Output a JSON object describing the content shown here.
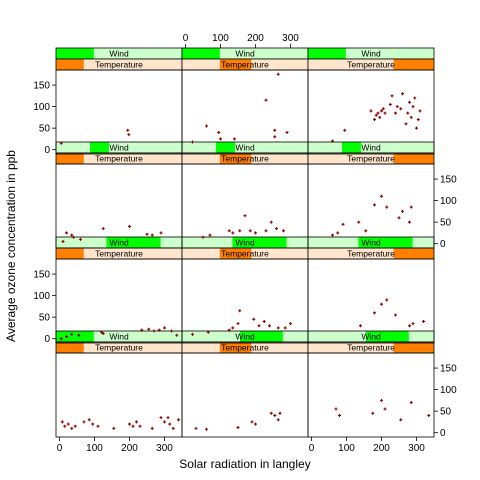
{
  "chart_data": {
    "type": "scatter",
    "xlabel": "Solar radiation in langley",
    "ylabel": "Average ozone concentration in ppb",
    "xlim": [
      -10,
      350
    ],
    "ylim": [
      -10,
      185
    ],
    "x_ticks": [
      0,
      100,
      200,
      300
    ],
    "y_ticks": [
      0,
      50,
      100,
      150
    ],
    "strip_variables": [
      "Wind",
      "Temperature"
    ],
    "layout": {
      "columns": 3,
      "rows": 4,
      "order": "bottom-to-top"
    },
    "colors": {
      "point": "#8b0000",
      "wind_strip_bg": "#ccffcc",
      "wind_strip_fill": "#00ff00",
      "temperature_strip_bg": "#ffe5cc",
      "temperature_strip_fill": "#ff7f00"
    },
    "panels": [
      {
        "row": 0,
        "col": 0,
        "wind": [
          0,
          0.3
        ],
        "temperature": [
          0,
          0.22
        ],
        "points": [
          [
            8,
            25
          ],
          [
            15,
            15
          ],
          [
            25,
            20
          ],
          [
            35,
            10
          ],
          [
            45,
            15
          ],
          [
            70,
            25
          ],
          [
            85,
            30
          ],
          [
            95,
            20
          ],
          [
            110,
            15
          ],
          [
            155,
            10
          ],
          [
            200,
            20
          ],
          [
            210,
            15
          ],
          [
            220,
            25
          ],
          [
            230,
            15
          ],
          [
            265,
            10
          ],
          [
            290,
            35
          ],
          [
            300,
            25
          ],
          [
            310,
            35
          ],
          [
            315,
            20
          ],
          [
            325,
            10
          ],
          [
            340,
            30
          ]
        ]
      },
      {
        "row": 0,
        "col": 1,
        "wind": [
          0.46,
          0.8
        ],
        "temperature": [
          0.3,
          0.55
        ],
        "points": [
          [
            30,
            10
          ],
          [
            60,
            8
          ],
          [
            150,
            12
          ],
          [
            190,
            25
          ],
          [
            200,
            20
          ],
          [
            245,
            45
          ],
          [
            255,
            40
          ],
          [
            265,
            30
          ],
          [
            270,
            45
          ]
        ]
      },
      {
        "row": 0,
        "col": 2,
        "wind": [
          0.46,
          0.8
        ],
        "temperature": [
          0.68,
          1.0
        ],
        "points": [
          [
            70,
            55
          ],
          [
            80,
            40
          ],
          [
            175,
            45
          ],
          [
            200,
            75
          ],
          [
            210,
            55
          ],
          [
            255,
            30
          ],
          [
            285,
            70
          ],
          [
            335,
            40
          ]
        ]
      },
      {
        "row": 1,
        "col": 0,
        "wind": [
          0.4,
          0.83
        ],
        "temperature": [
          0,
          0.22
        ],
        "points": [
          [
            5,
            0
          ],
          [
            20,
            5
          ],
          [
            35,
            10
          ],
          [
            55,
            8
          ],
          [
            120,
            15
          ],
          [
            125,
            12
          ],
          [
            235,
            20
          ],
          [
            255,
            22
          ],
          [
            270,
            18
          ],
          [
            285,
            20
          ],
          [
            300,
            25
          ],
          [
            320,
            18
          ],
          [
            335,
            8
          ]
        ]
      },
      {
        "row": 1,
        "col": 1,
        "wind": [
          0.4,
          0.83
        ],
        "temperature": [
          0.3,
          0.55
        ],
        "points": [
          [
            20,
            10
          ],
          [
            65,
            15
          ],
          [
            125,
            20
          ],
          [
            135,
            25
          ],
          [
            150,
            35
          ],
          [
            155,
            65
          ],
          [
            195,
            45
          ],
          [
            210,
            30
          ],
          [
            225,
            40
          ],
          [
            240,
            30
          ],
          [
            265,
            25
          ],
          [
            285,
            25
          ],
          [
            300,
            35
          ]
        ]
      },
      {
        "row": 1,
        "col": 2,
        "wind": [
          0.4,
          0.83
        ],
        "temperature": [
          0.68,
          1.0
        ],
        "points": [
          [
            140,
            30
          ],
          [
            180,
            60
          ],
          [
            200,
            80
          ],
          [
            215,
            90
          ],
          [
            240,
            55
          ],
          [
            280,
            30
          ],
          [
            290,
            35
          ],
          [
            320,
            40
          ]
        ]
      },
      {
        "row": 2,
        "col": 0,
        "wind": [
          0.27,
          0.42
        ],
        "temperature": [
          0,
          0.22
        ],
        "points": [
          [
            10,
            5
          ],
          [
            20,
            25
          ],
          [
            35,
            20
          ],
          [
            40,
            15
          ],
          [
            60,
            10
          ],
          [
            125,
            35
          ],
          [
            200,
            40
          ],
          [
            250,
            22
          ],
          [
            265,
            20
          ],
          [
            290,
            25
          ]
        ]
      },
      {
        "row": 2,
        "col": 1,
        "wind": [
          0.27,
          0.42
        ],
        "temperature": [
          0.3,
          0.55
        ],
        "points": [
          [
            50,
            15
          ],
          [
            70,
            20
          ],
          [
            125,
            30
          ],
          [
            135,
            25
          ],
          [
            155,
            30
          ],
          [
            170,
            65
          ],
          [
            185,
            30
          ],
          [
            200,
            25
          ],
          [
            230,
            30
          ],
          [
            245,
            50
          ],
          [
            260,
            35
          ],
          [
            280,
            30
          ]
        ]
      },
      {
        "row": 2,
        "col": 2,
        "wind": [
          0.27,
          0.42
        ],
        "temperature": [
          0.68,
          1.0
        ],
        "points": [
          [
            60,
            20
          ],
          [
            75,
            25
          ],
          [
            90,
            45
          ],
          [
            135,
            50
          ],
          [
            155,
            30
          ],
          [
            180,
            90
          ],
          [
            200,
            110
          ],
          [
            215,
            85
          ],
          [
            250,
            60
          ],
          [
            260,
            75
          ],
          [
            285,
            85
          ],
          [
            280,
            50
          ]
        ]
      },
      {
        "row": 3,
        "col": 0,
        "wind": [
          0,
          0.3
        ],
        "temperature": [
          0,
          0.22
        ],
        "points": [
          [
            5,
            15
          ],
          [
            195,
            45
          ],
          [
            198,
            35
          ]
        ]
      },
      {
        "row": 3,
        "col": 1,
        "wind": [
          0,
          0.3
        ],
        "temperature": [
          0.3,
          0.55
        ],
        "points": [
          [
            20,
            18
          ],
          [
            60,
            55
          ],
          [
            95,
            40
          ],
          [
            100,
            25
          ],
          [
            140,
            25
          ],
          [
            230,
            115
          ],
          [
            255,
            30
          ],
          [
            255,
            45
          ],
          [
            265,
            175
          ],
          [
            290,
            40
          ]
        ]
      },
      {
        "row": 3,
        "col": 2,
        "wind": [
          0,
          0.3
        ],
        "temperature": [
          0.68,
          1.0
        ],
        "points": [
          [
            60,
            20
          ],
          [
            95,
            45
          ],
          [
            170,
            90
          ],
          [
            180,
            70
          ],
          [
            185,
            80
          ],
          [
            190,
            85
          ],
          [
            195,
            75
          ],
          [
            200,
            90
          ],
          [
            205,
            95
          ],
          [
            210,
            85
          ],
          [
            225,
            105
          ],
          [
            230,
            125
          ],
          [
            240,
            85
          ],
          [
            245,
            100
          ],
          [
            255,
            95
          ],
          [
            260,
            130
          ],
          [
            270,
            60
          ],
          [
            275,
            85
          ],
          [
            280,
            110
          ],
          [
            285,
            75
          ],
          [
            290,
            100
          ],
          [
            295,
            120
          ],
          [
            300,
            50
          ],
          [
            305,
            70
          ],
          [
            310,
            90
          ]
        ]
      }
    ]
  }
}
